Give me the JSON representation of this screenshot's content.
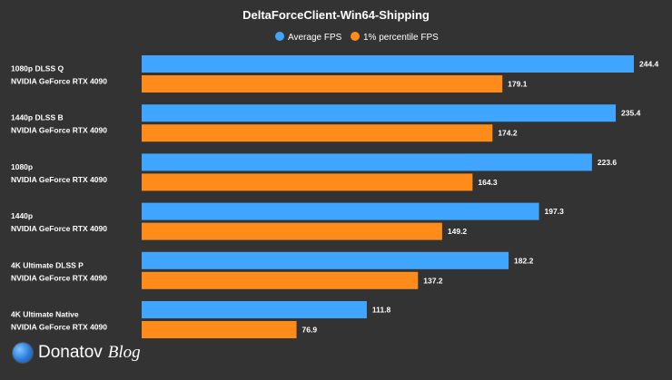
{
  "chart_data": {
    "type": "bar",
    "orientation": "horizontal",
    "title": "DeltaForceClient-Win64-Shipping",
    "legend_position": "top-center",
    "categories": [
      [
        "1080p DLSS Q",
        "NVIDIA GeForce RTX 4090"
      ],
      [
        "1440p DLSS B",
        "NVIDIA GeForce RTX 4090"
      ],
      [
        "1080p",
        "NVIDIA GeForce RTX 4090"
      ],
      [
        "1440p",
        "NVIDIA GeForce RTX 4090"
      ],
      [
        "4K Ultimate DLSS P",
        "NVIDIA GeForce RTX 4090"
      ],
      [
        "4K Ultimate Native",
        "NVIDIA GeForce RTX 4090"
      ]
    ],
    "series": [
      {
        "name": "Average FPS",
        "color": "#3fa5ff",
        "values": [
          244.4,
          235.4,
          223.6,
          197.3,
          182.2,
          111.8
        ]
      },
      {
        "name": "1% percentile FPS",
        "color": "#ff8c1a",
        "values": [
          179.1,
          174.2,
          164.3,
          149.2,
          137.2,
          76.9
        ]
      }
    ],
    "xlim": [
      0,
      244.4
    ],
    "grid": false
  },
  "watermark": {
    "name": "Donatov",
    "suffix": "Blog"
  }
}
